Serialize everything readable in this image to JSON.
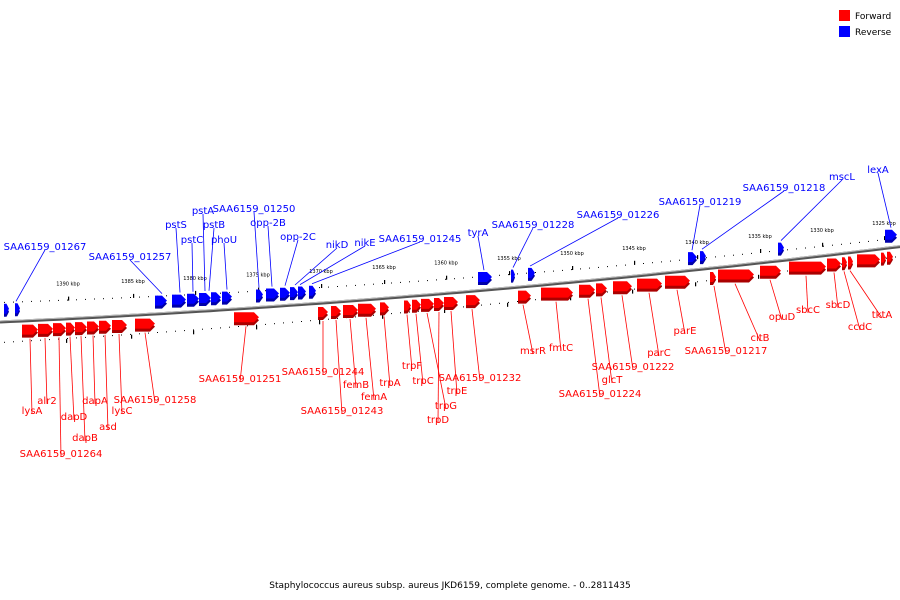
{
  "caption": "Staphylococcus aureus subsp. aureus JKD6159, complete genome. - 0..2811435",
  "legend": [
    {
      "label": "Forward",
      "color": "#ff0000"
    },
    {
      "label": "Reverse",
      "color": "#0000ff"
    }
  ],
  "colors": {
    "forward": "#ff0000",
    "forward_dark": "#aa0000",
    "reverse": "#0000ff",
    "reverse_dark": "#0000aa",
    "backbone": "#888888"
  },
  "ticks": [
    "1390 kbp",
    "1385 kbp",
    "1380 kbp",
    "1375 kbp",
    "1370 kbp",
    "1365 kbp",
    "1360 kbp",
    "1355 kbp",
    "1350 kbp",
    "1345 kbp",
    "1340 kbp",
    "1335 kbp",
    "1330 kbp",
    "1325 kbp"
  ],
  "reverse_labels": [
    "SAA6159_01267",
    "SAA6159_01257",
    "pstS",
    "pstC",
    "pstA",
    "pstB",
    "phoU",
    "SAA6159_01250",
    "opp-2B",
    "opp-2C",
    "nikD",
    "nikE",
    "SAA6159_01245",
    "tyrA",
    "SAA6159_01228",
    "SAA6159_01226",
    "SAA6159_01219",
    "SAA6159_01218",
    "mscL",
    "lexA"
  ],
  "forward_labels": [
    "lysA",
    "alr2",
    "SAA6159_01264",
    "dapD",
    "dapB",
    "dapA",
    "asd",
    "lysC",
    "SAA6159_01258",
    "SAA6159_01251",
    "SAA6159_01244",
    "SAA6159_01243",
    "femB",
    "femA",
    "trpA",
    "trpF",
    "trpC",
    "trpG",
    "trpD",
    "trpE",
    "SAA6159_01232",
    "msrR",
    "fmtC",
    "SAA6159_01224",
    "glcT",
    "SAA6159_01222",
    "parC",
    "parE",
    "SAA6159_01217",
    "citB",
    "opuD",
    "sbcC",
    "sbcD",
    "ccdC",
    "tktA"
  ]
}
